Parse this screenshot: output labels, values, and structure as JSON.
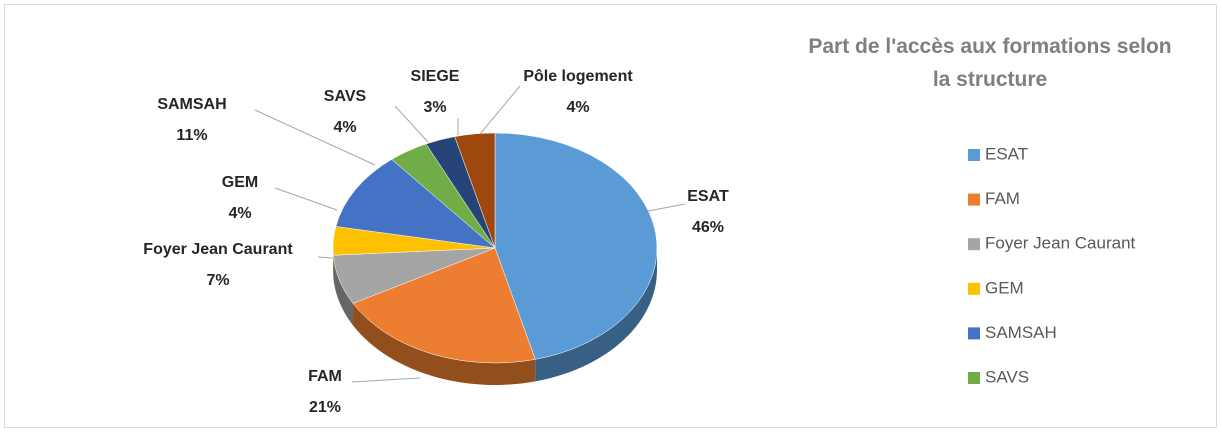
{
  "chart_data": {
    "type": "pie",
    "title": "Part de l'accès aux formations selon la structure",
    "categories": [
      "ESAT",
      "FAM",
      "Foyer Jean Caurant",
      "GEM",
      "SAMSAH",
      "SAVS",
      "SIEGE",
      "Pôle logement"
    ],
    "values": [
      46,
      21,
      7,
      4,
      11,
      4,
      3,
      4
    ],
    "value_labels": [
      "46%",
      "21%",
      "7%",
      "4%",
      "11%",
      "4%",
      "3%",
      "4%"
    ],
    "colors": [
      "#5b9bd5",
      "#ed7d31",
      "#a5a5a5",
      "#ffc000",
      "#4472c4",
      "#70ad47",
      "#264478",
      "#9e480e"
    ],
    "legend": "right",
    "legend_visible_entries": 6
  }
}
